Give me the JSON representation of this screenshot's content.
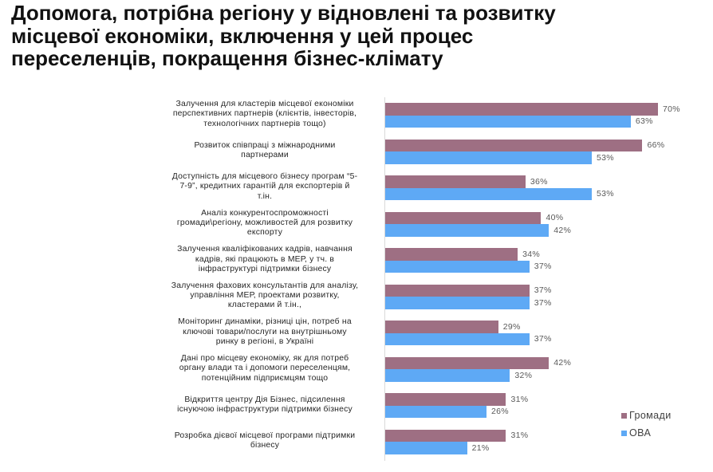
{
  "title": {
    "lines": [
      "Допомога, потрібна регіону у відновлені та розвитку",
      "місцевої економіки, включення у цей процес",
      "переселенців, покращення бізнес-клімату"
    ]
  },
  "legend": {
    "items": [
      {
        "label": "Громади",
        "color": "#9e6f83"
      },
      {
        "label": "ОВА",
        "color": "#5ea9f5"
      }
    ]
  },
  "chart_data": {
    "type": "bar",
    "orientation": "horizontal",
    "title": "Допомога, потрібна регіону у відновлені та розвитку місцевої економіки, включення у цей процес переселенців, покращення бізнес-клімату",
    "xlabel": "",
    "ylabel": "",
    "xlim": [
      0,
      75
    ],
    "grid": false,
    "legend_position": "right-bottom",
    "categories": [
      "Залучення для кластерів місцевої економіки перспективних партнерів (клієнтів, інвесторів, технологічних партнерів тощо)",
      "Розвиток співпраці з міжнародними партнерами",
      "Доступність для місцевого бізнесу програм “5-7-9”, кредитних гарантій для експортерів й т.ін.",
      "Аналіз конкурентоспроможності громади\\регіону, можливостей для розвитку експорту",
      "Залучення кваліфікованих кадрів, навчання кадрів, які працюють в МЕР, у тч. в інфраструктурі підтримки бізнесу",
      "Залучення фахових консультантів для аналізу, управління МЕР, проектами розвитку, кластерами й т.ін.,",
      "Моніторинг динаміки, різниці цін, потреб на ключові товари/послуги на внутрішньому ринку в регіоні, в Україні",
      "Дані про місцеву економіку, як для потреб органу влади та і допомоги переселенцям, потенційним підприємцям тощо",
      "Відкриття центру Дія Бізнес, підсилення існуючою інфраструктури підтримки бізнесу",
      "Розробка дієвої місцевої програми підтримки бізнесу"
    ],
    "series": [
      {
        "name": "Громади",
        "color": "#9e6f83",
        "values": [
          70,
          66,
          36,
          40,
          34,
          37,
          29,
          42,
          31,
          31
        ]
      },
      {
        "name": "ОВА",
        "color": "#5ea9f5",
        "values": [
          63,
          53,
          53,
          42,
          37,
          37,
          37,
          32,
          26,
          21
        ]
      }
    ],
    "value_labels": {
      "Громади": [
        "70%",
        "66%",
        "36%",
        "40%",
        "34%",
        "37%",
        "29%",
        "42%",
        "31%",
        "31%"
      ],
      "ОВА": [
        "63%",
        "53%",
        "53%",
        "42%",
        "37%",
        "37%",
        "37%",
        "32%",
        "26%",
        "21%"
      ]
    }
  },
  "rows": [
    {
      "label_lines": [
        "Залучення для кластерів місцевої економіки",
        "перспективних партнерів (клієнтів, інвесторів,",
        "технологічних партнерів тощо)"
      ],
      "g_label": "70%",
      "o_label": "63%"
    },
    {
      "label_lines": [
        "Розвиток співпраці з міжнародними",
        "партнерами"
      ],
      "g_label": "66%",
      "o_label": "53%"
    },
    {
      "label_lines": [
        "Доступність для місцевого бізнесу програм  “5-",
        "7-9”, кредитних гарантій для експортерів й",
        "т.ін."
      ],
      "g_label": "36%",
      "o_label": "53%"
    },
    {
      "label_lines": [
        "Аналіз конкурентоспроможності",
        "громади\\регіону, можливостей для розвитку",
        "експорту"
      ],
      "g_label": "40%",
      "o_label": "42%"
    },
    {
      "label_lines": [
        "Залучення кваліфікованих кадрів, навчання",
        "кадрів, які працюють в МЕР, у тч. в",
        "інфраструктурі підтримки бізнесу"
      ],
      "g_label": "34%",
      "o_label": "37%"
    },
    {
      "label_lines": [
        "Залучення фахових консультантів для аналізу,",
        "управління МЕР, проектами розвитку,",
        "кластерами й т.ін.,"
      ],
      "g_label": "37%",
      "o_label": "37%"
    },
    {
      "label_lines": [
        "Моніторинг динаміки, різниці цін, потреб на",
        "ключові товари/послуги на внутрішньому",
        "ринку в регіоні, в Україні"
      ],
      "g_label": "29%",
      "o_label": "37%"
    },
    {
      "label_lines": [
        "Дані про місцеву економіку, як для потреб",
        "органу влади та і допомоги переселенцям,",
        "потенційним підприємцям тощо"
      ],
      "g_label": "42%",
      "o_label": "32%"
    },
    {
      "label_lines": [
        "Відкриття центру Дія Бізнес, підсилення",
        "існуючою інфраструктури підтримки бізнесу"
      ],
      "g_label": "31%",
      "o_label": "26%"
    },
    {
      "label_lines": [
        "Розробка дієвої місцевої програми підтримки",
        "бізнесу"
      ],
      "g_label": "31%",
      "o_label": "21%"
    }
  ]
}
